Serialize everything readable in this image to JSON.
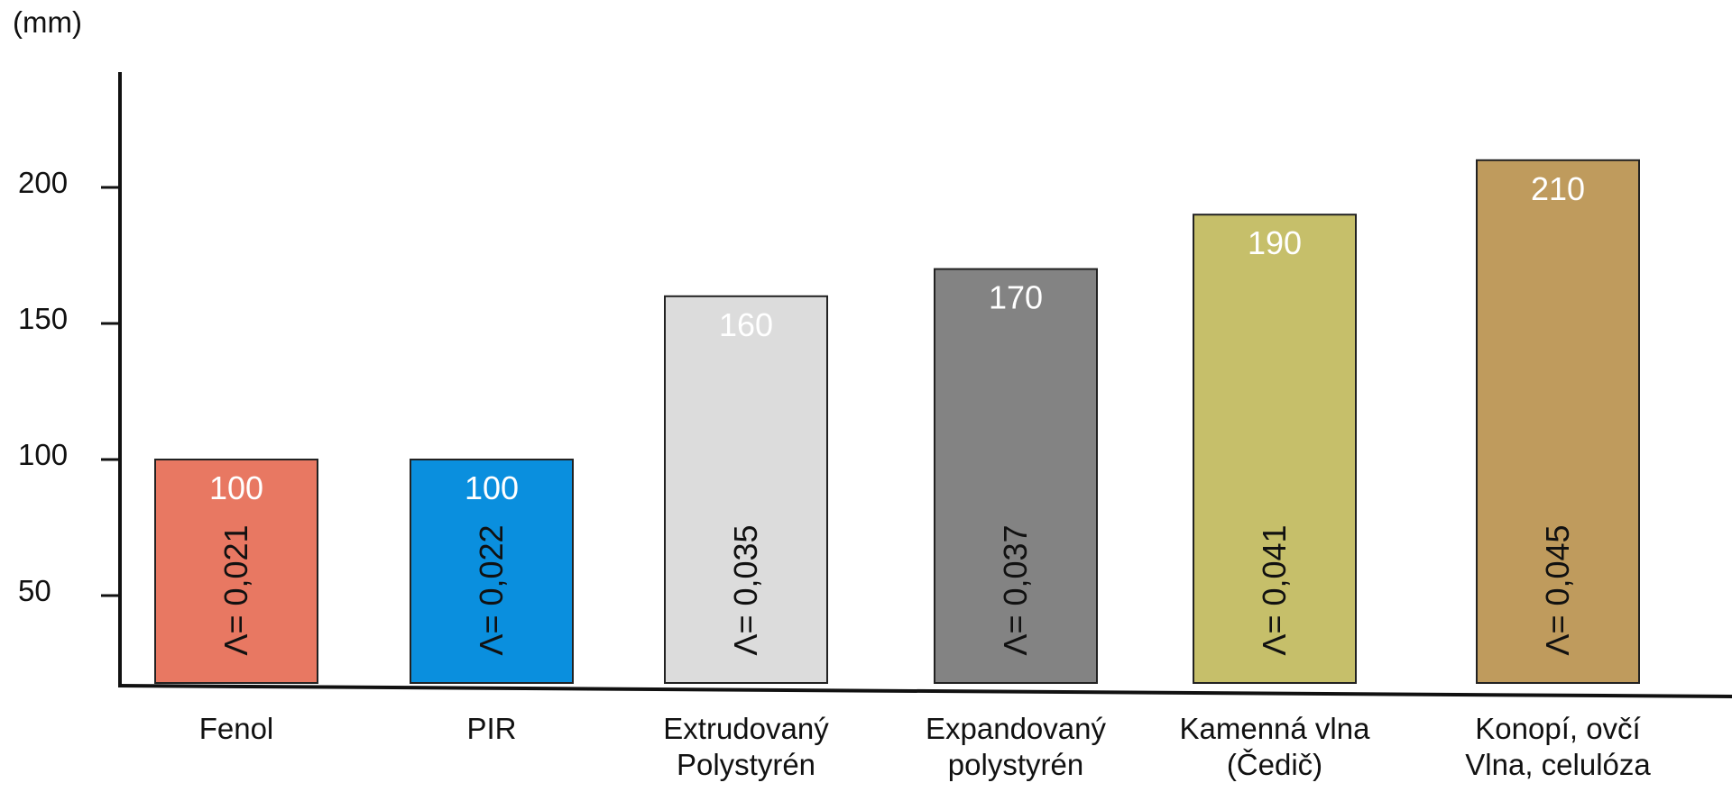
{
  "chart_data": {
    "type": "bar",
    "title": "",
    "ylabel": "(mm)",
    "xlabel": "",
    "ylim": [
      0,
      220
    ],
    "yticks": [
      50,
      100,
      150,
      200
    ],
    "grid": false,
    "categories": [
      [
        "Fenol"
      ],
      [
        "PIR"
      ],
      [
        "Extrudovaný",
        "Polystyrén"
      ],
      [
        "Expandovaný",
        "polystyrén"
      ],
      [
        "Kamenná vlna",
        "(Čedič)"
      ],
      [
        "Konopí, ovčí",
        "Vlna, celulóza"
      ]
    ],
    "values": [
      100,
      100,
      160,
      170,
      190,
      210
    ],
    "value_labels": [
      "100",
      "100",
      "160",
      "170",
      "190",
      "210"
    ],
    "lambda_labels": [
      "Λ= 0,021",
      "Λ= 0,022",
      "Λ= 0,035",
      "Λ= 0,037",
      "Λ= 0,041",
      "Λ= 0,045"
    ],
    "colors": [
      "#e87862",
      "#0a8fde",
      "#dcdcdc",
      "#838383",
      "#c6bf6a",
      "#bf9b5d"
    ]
  }
}
